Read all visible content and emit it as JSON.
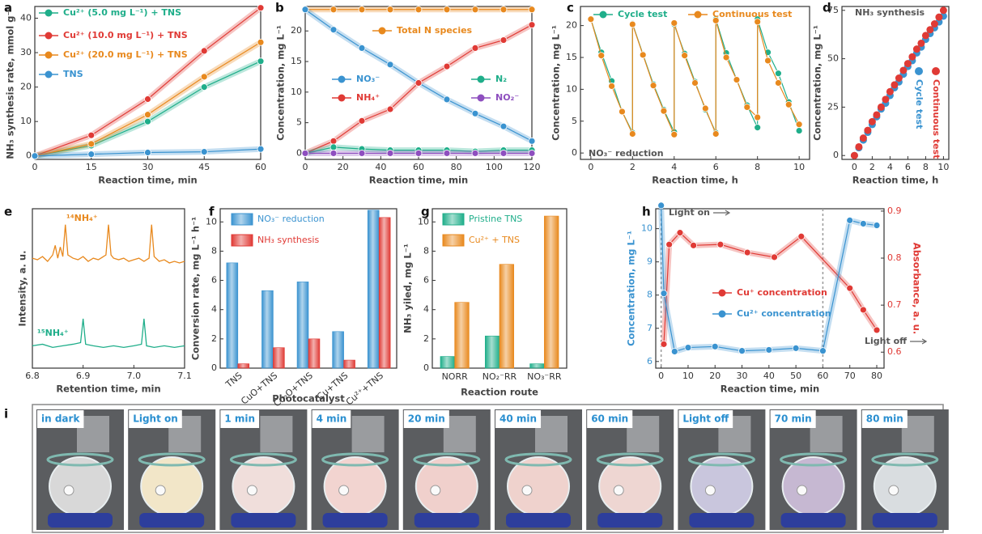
{
  "chart_data": [
    {
      "type": "line",
      "panel": "a",
      "xlabel": "Reaction time, min",
      "ylabel": "NH₃ synthesis rate, mmol g⁻¹",
      "xlim": [
        0,
        60
      ],
      "xticks": [
        0,
        15,
        30,
        45,
        60
      ],
      "ylim": [
        -1,
        43.4
      ],
      "yticks": [
        0,
        10,
        20,
        30,
        40
      ],
      "series": [
        {
          "name": "Cu²⁺ (5.0 mg L⁻¹) + TNS",
          "color": "#1fae8a",
          "x": [
            0,
            15,
            30,
            45,
            60
          ],
          "values": [
            0,
            3,
            10,
            20,
            27.5
          ]
        },
        {
          "name": "Cu²⁺ (10.0 mg L⁻¹) + TNS",
          "color": "#e03a35",
          "x": [
            0,
            15,
            30,
            45,
            60
          ],
          "values": [
            0,
            6,
            16.5,
            30.5,
            43
          ]
        },
        {
          "name": "Cu²⁺ (20.0 mg L⁻¹) + TNS",
          "color": "#e8891e",
          "x": [
            0,
            15,
            30,
            45,
            60
          ],
          "values": [
            0,
            3.5,
            12,
            23,
            33
          ]
        },
        {
          "name": "TNS",
          "color": "#3a93d0",
          "x": [
            0,
            15,
            30,
            45,
            60
          ],
          "values": [
            0,
            0.5,
            1,
            1.2,
            2
          ]
        }
      ]
    },
    {
      "type": "line",
      "panel": "b",
      "xlabel": "Reaction time, min",
      "ylabel": "Concentration, mg L⁻¹",
      "xlim": [
        0,
        120
      ],
      "xticks": [
        0,
        20,
        40,
        60,
        80,
        100,
        120
      ],
      "ylim": [
        -1,
        24
      ],
      "yticks": [
        0,
        5,
        10,
        15,
        20
      ],
      "series": [
        {
          "name": "Total N species",
          "color": "#e8891e",
          "x": [
            0,
            15,
            30,
            45,
            60,
            75,
            90,
            105,
            120
          ],
          "values": [
            23.5,
            23.5,
            23.5,
            23.5,
            23.5,
            23.5,
            23.5,
            23.5,
            23.5
          ]
        },
        {
          "name": "NO₃⁻",
          "color": "#3a93d0",
          "x": [
            0,
            15,
            30,
            45,
            60,
            75,
            90,
            105,
            120
          ],
          "values": [
            23.5,
            20.2,
            17.2,
            14.5,
            11.5,
            8.8,
            6.5,
            4.4,
            2
          ]
        },
        {
          "name": "NH₄⁺",
          "color": "#e03a35",
          "x": [
            0,
            15,
            30,
            45,
            60,
            75,
            90,
            105,
            120
          ],
          "values": [
            0,
            2,
            5.3,
            7.2,
            11.5,
            14.2,
            17.2,
            18.5,
            21
          ]
        },
        {
          "name": "N₂",
          "color": "#1fae8a",
          "x": [
            0,
            15,
            30,
            45,
            60,
            75,
            90,
            105,
            120
          ],
          "values": [
            0,
            1,
            0.7,
            0.5,
            0.5,
            0.5,
            0.3,
            0.5,
            0.5
          ]
        },
        {
          "name": "NO₂⁻",
          "color": "#8e4fbf",
          "x": [
            0,
            15,
            30,
            45,
            60,
            75,
            90,
            105,
            120
          ],
          "values": [
            0,
            0,
            0,
            0,
            0,
            0,
            0,
            0,
            0
          ]
        }
      ]
    },
    {
      "type": "line",
      "panel": "c",
      "xlabel": "Reaction time, h",
      "ylabel": "Concentration, mg L⁻¹",
      "xlim": [
        -0.5,
        10.5
      ],
      "xticks": [
        0,
        2,
        4,
        6,
        8,
        10
      ],
      "ylim": [
        -1,
        23
      ],
      "yticks": [
        0,
        5,
        10,
        15,
        20
      ],
      "annotations": [
        {
          "text": "NO₃⁻ reduction",
          "color": "#555555"
        }
      ],
      "series": [
        {
          "name": "Cycle test",
          "color": "#1fae8a",
          "x": [
            0,
            0.5,
            1,
            1.5,
            2,
            2,
            2.5,
            3,
            3.5,
            4,
            4,
            4.5,
            5,
            5.5,
            6,
            6,
            6.5,
            7,
            7.5,
            8,
            8,
            8.5,
            9,
            9.5,
            10
          ],
          "values": [
            21,
            15.8,
            11.3,
            6.5,
            3.2,
            20.3,
            15.5,
            10.8,
            6.8,
            3.3,
            20.2,
            15.6,
            11.2,
            6.8,
            3.2,
            21,
            15.7,
            11.5,
            7.5,
            4,
            21,
            15.8,
            12.5,
            8,
            3.5
          ]
        },
        {
          "name": "Continuous test",
          "color": "#e8891e",
          "x": [
            0,
            0.5,
            1,
            1.5,
            2,
            2,
            2.5,
            3,
            3.5,
            4,
            4,
            4.5,
            5,
            5.5,
            6,
            6,
            6.5,
            7,
            7.5,
            8,
            8,
            8.5,
            9,
            9.5,
            10
          ],
          "values": [
            21,
            15.3,
            10.5,
            6.5,
            3,
            20.2,
            15.4,
            10.6,
            6.6,
            2.9,
            20.4,
            15.3,
            11,
            7,
            3,
            20.8,
            15,
            11.5,
            7.2,
            5.6,
            20.6,
            14.5,
            11,
            7.6,
            4.5
          ]
        }
      ]
    },
    {
      "type": "scatter",
      "panel": "d",
      "xlabel": "Reaction time, h",
      "ylabel": "Concentration, mg L⁻¹",
      "xlim": [
        -1.4,
        10.6
      ],
      "xticks": [
        0,
        2,
        4,
        6,
        8,
        10
      ],
      "ylim": [
        -2,
        77
      ],
      "yticks": [
        0,
        25,
        50,
        75
      ],
      "annotations": [
        {
          "text": "NH₃ synthesis",
          "color": "#555555"
        }
      ],
      "series": [
        {
          "name": "Cycle test",
          "color": "#3a93d0",
          "x": [
            0,
            0.5,
            1,
            1.5,
            2,
            2.5,
            3,
            3.5,
            4,
            4.5,
            5,
            5.5,
            6,
            6.5,
            7,
            7.5,
            8,
            8.5,
            9,
            9.5,
            10
          ],
          "values": [
            0,
            4,
            8,
            12,
            16,
            20,
            24,
            27,
            31,
            35,
            38,
            42,
            46,
            49,
            53,
            56,
            60,
            63,
            66,
            69,
            72
          ]
        },
        {
          "name": "Continuous test",
          "color": "#e03a35",
          "x": [
            0,
            0.5,
            1,
            1.5,
            2,
            2.5,
            3,
            3.5,
            4,
            4.5,
            5,
            5.5,
            6,
            6.5,
            7,
            7.5,
            8,
            8.5,
            9,
            9.5,
            10
          ],
          "values": [
            0,
            4.5,
            9,
            13,
            17.5,
            21,
            25,
            29,
            33,
            36.5,
            40,
            44,
            47.5,
            51,
            55,
            58,
            62,
            65,
            68,
            71.5,
            75
          ]
        }
      ]
    },
    {
      "type": "line",
      "panel": "e",
      "xlabel": "Retention time, min",
      "ylabel": "Intensity, a. u.",
      "markers": false,
      "xlim": [
        6.8,
        7.1
      ],
      "xticks": [
        6.8,
        6.9,
        {
          "value": 7,
          "label": "7.0"
        },
        7.1
      ],
      "ylim": [
        0,
        10
      ],
      "annotations": [
        {
          "text": "¹⁴NH₄⁺",
          "color": "#e8891e"
        },
        {
          "text": "¹⁵NH₄⁺",
          "color": "#1fae8a"
        }
      ],
      "series": [
        {
          "color": "#e8891e",
          "x": [
            6.8,
            6.81,
            6.82,
            6.83,
            6.84,
            6.845,
            6.85,
            6.855,
            6.86,
            6.865,
            6.87,
            6.88,
            6.89,
            6.9,
            6.91,
            6.92,
            6.93,
            6.94,
            6.945,
            6.95,
            6.955,
            6.96,
            6.97,
            6.98,
            6.99,
            7.0,
            7.01,
            7.02,
            7.03,
            7.035,
            7.04,
            7.05,
            7.06,
            7.07,
            7.08,
            7.09,
            7.1
          ],
          "values": [
            6.9,
            6.8,
            7.0,
            6.7,
            7.1,
            7.7,
            6.9,
            7.6,
            7.0,
            9.0,
            7.1,
            6.9,
            6.8,
            7.0,
            6.7,
            6.9,
            6.8,
            7.0,
            7.1,
            9.0,
            7.1,
            6.9,
            6.8,
            6.9,
            6.7,
            6.8,
            6.9,
            6.7,
            6.9,
            9.0,
            7.0,
            6.7,
            6.8,
            6.6,
            6.7,
            6.6,
            6.7
          ]
        },
        {
          "color": "#1fae8a",
          "x": [
            6.8,
            6.82,
            6.84,
            6.86,
            6.88,
            6.895,
            6.9,
            6.905,
            6.92,
            6.94,
            6.96,
            6.98,
            7.0,
            7.015,
            7.02,
            7.025,
            7.04,
            7.06,
            7.08,
            7.1
          ],
          "values": [
            1.4,
            1.5,
            1.3,
            1.4,
            1.5,
            1.6,
            3.1,
            1.5,
            1.4,
            1.3,
            1.4,
            1.3,
            1.4,
            1.5,
            3.1,
            1.4,
            1.3,
            1.4,
            1.3,
            1.4
          ]
        }
      ]
    },
    {
      "type": "bar",
      "panel": "f",
      "xlabel": "Photocatalyst",
      "ylabel": "Conversion rate, mg L⁻¹ h⁻¹",
      "categories": [
        "TNS",
        "CuO+TNS",
        "Cu₂O+TNS",
        "Cu+TNS",
        "Cu²⁺+TNS"
      ],
      "ylim": [
        0,
        10.9
      ],
      "yticks": [
        0,
        2,
        4,
        6,
        8,
        10
      ],
      "series": [
        {
          "name": "NO₃⁻ reduction",
          "color": "#3a93d0",
          "values": [
            7.2,
            5.3,
            5.9,
            2.5,
            10.8
          ]
        },
        {
          "name": "NH₃ synthesis",
          "color": "#e03a35",
          "values": [
            0.3,
            1.4,
            2,
            0.55,
            10.3
          ]
        }
      ]
    },
    {
      "type": "bar",
      "panel": "g",
      "xlabel": "Reaction route",
      "ylabel": "NH₃ yiled, mg L⁻¹",
      "categories": [
        "NORR",
        "NO₂⁻RR",
        "NO₃⁻RR"
      ],
      "ylim": [
        0,
        10.9
      ],
      "yticks": [
        0,
        2,
        4,
        6,
        8,
        10
      ],
      "series": [
        {
          "name": "Pristine TNS",
          "color": "#1fae8a",
          "values": [
            0.8,
            2.2,
            0.3
          ]
        },
        {
          "name": "Cu²⁺ + TNS",
          "color": "#e8891e",
          "values": [
            4.5,
            7.1,
            10.4
          ]
        }
      ]
    },
    {
      "type": "line",
      "panel": "h",
      "xlabel": "Reaction time, min",
      "ylabel": "Concentration, mg L⁻¹",
      "y2label": "Absorbance, a. u.",
      "xlim": [
        -2,
        82.7
      ],
      "xticks": [
        0,
        10,
        20,
        30,
        40,
        50,
        60,
        70,
        80
      ],
      "ylim": [
        5.8,
        10.6
      ],
      "yticks": [
        6,
        7,
        8,
        9,
        10
      ],
      "y2lim": [
        0.566,
        0.905
      ],
      "y2ticks": [
        0.6,
        0.7,
        0.8,
        0.9
      ],
      "vlines": [
        0,
        60
      ],
      "annotations": [
        {
          "text": "Light on",
          "color": "#555555"
        },
        {
          "text": "Light off",
          "color": "#555555"
        }
      ],
      "series": [
        {
          "name": "Cu⁺ concentration",
          "color": "#e03a35",
          "axis": "y2",
          "x": [
            1,
            3,
            7,
            12,
            22,
            32,
            42,
            52,
            70,
            75,
            80
          ],
          "values": [
            0.617,
            0.829,
            0.854,
            0.827,
            0.829,
            0.812,
            0.802,
            0.846,
            0.736,
            0.69,
            0.647
          ]
        },
        {
          "name": "Cu²⁺ concentration",
          "color": "#3a93d0",
          "x": [
            0,
            1,
            5,
            10,
            20,
            30,
            40,
            50,
            60,
            70,
            75,
            80
          ],
          "values": [
            10.7,
            8.05,
            6.3,
            6.42,
            6.45,
            6.32,
            6.35,
            6.4,
            6.32,
            10.25,
            10.15,
            10.1
          ]
        }
      ]
    }
  ],
  "photo_panel": {
    "panel": "i",
    "captions": [
      "in dark",
      "Light on",
      "1 min",
      "4 min",
      "20 min",
      "40 min",
      "60 min",
      "Light off",
      "70 min",
      "80 min"
    ]
  }
}
